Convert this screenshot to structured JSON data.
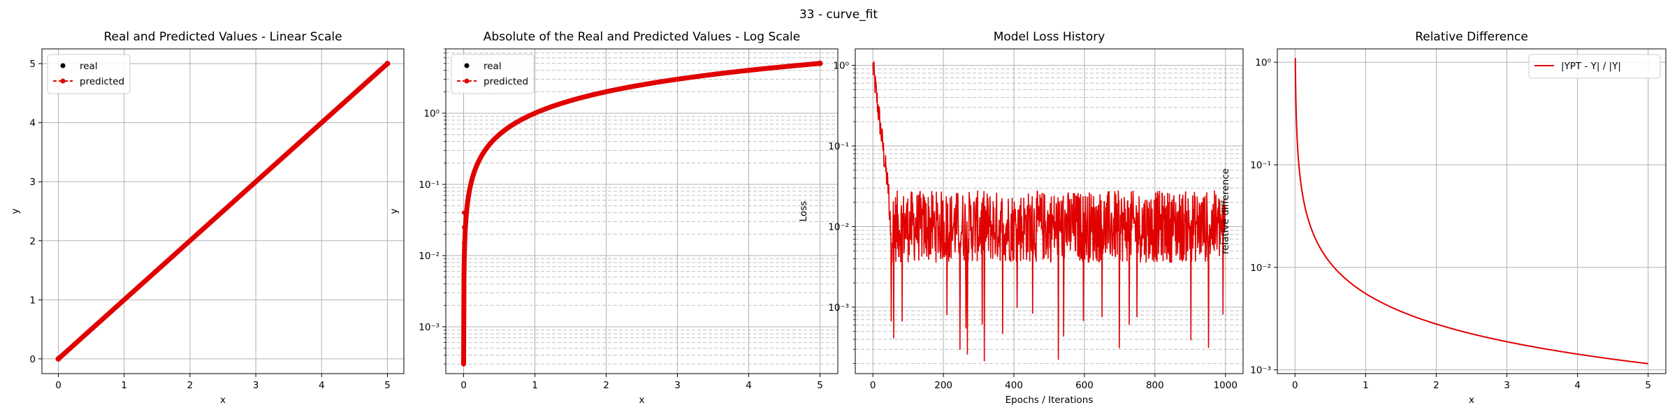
{
  "figure": {
    "suptitle": "33 - curve_fit"
  },
  "colors": {
    "real": "#000000",
    "predicted": "#e00000",
    "grid_major": "#b0b0b0",
    "grid_minor": "#c0c0c0"
  },
  "chart_data": [
    {
      "type": "line",
      "title": "Real and Predicted Values - Linear Scale",
      "xlabel": "x",
      "ylabel": "y",
      "xscale": "linear",
      "yscale": "linear",
      "xlim": [
        -0.25,
        5.25
      ],
      "ylim": [
        -0.25,
        5.25
      ],
      "xticks": [
        0,
        1,
        2,
        3,
        4,
        5
      ],
      "xticklabels": [
        "0",
        "1",
        "2",
        "3",
        "4",
        "5"
      ],
      "yticks": [
        0,
        1,
        2,
        3,
        4,
        5
      ],
      "yticklabels": [
        "0",
        "1",
        "2",
        "3",
        "4",
        "5"
      ],
      "grid": "major",
      "legend": {
        "placement": "upper-left",
        "entries": [
          "real",
          "predicted"
        ]
      },
      "series": [
        {
          "name": "real",
          "style": "dots",
          "color": "#000000",
          "x": [
            0,
            0.5,
            1,
            1.5,
            2,
            2.5,
            3,
            3.5,
            4,
            4.5,
            5
          ],
          "y": [
            0,
            0.5,
            1,
            1.5,
            2,
            2.5,
            3,
            3.5,
            4,
            4.5,
            5
          ]
        },
        {
          "name": "predicted",
          "style": "dashed-dots",
          "color": "#e00000",
          "x": [
            0,
            0.5,
            1,
            1.5,
            2,
            2.5,
            3,
            3.5,
            4,
            4.5,
            5
          ],
          "y": [
            0,
            0.5,
            1,
            1.5,
            2,
            2.5,
            3,
            3.5,
            4,
            4.5,
            5
          ]
        }
      ]
    },
    {
      "type": "line",
      "title": "Absolute of the Real and Predicted Values - Log Scale",
      "xlabel": "x",
      "ylabel": "y",
      "xscale": "linear",
      "yscale": "log",
      "xlim": [
        -0.25,
        5.25
      ],
      "ylim": [
        0.00022,
        8
      ],
      "xticks": [
        0,
        1,
        2,
        3,
        4,
        5
      ],
      "xticklabels": [
        "0",
        "1",
        "2",
        "3",
        "4",
        "5"
      ],
      "yticks": [
        0.001,
        0.01,
        0.1,
        1
      ],
      "yticklabels": [
        "10⁻³",
        "10⁻²",
        "10⁻¹",
        "10⁰"
      ],
      "grid": "major-and-minor",
      "legend": {
        "placement": "upper-left",
        "entries": [
          "real",
          "predicted"
        ]
      },
      "series": [
        {
          "name": "real",
          "style": "dots",
          "color": "#000000",
          "x": [
            0.005,
            0.01,
            0.015,
            0.02,
            0.03,
            0.05,
            0.1,
            0.2,
            0.5,
            1,
            2,
            3,
            4,
            5
          ],
          "y": [
            0.005,
            0.01,
            0.015,
            0.02,
            0.03,
            0.05,
            0.1,
            0.2,
            0.5,
            1,
            2,
            3,
            4,
            5
          ]
        },
        {
          "name": "predicted",
          "style": "dashed-dots",
          "color": "#e00000",
          "x": [
            0,
            0.01,
            0.015,
            0.02,
            0.03,
            0.05,
            0.1,
            0.2,
            0.5,
            1,
            2,
            3,
            4,
            5
          ],
          "y": [
            0.0003,
            0.01,
            0.015,
            0.02,
            0.03,
            0.05,
            0.1,
            0.2,
            0.5,
            1,
            2,
            3,
            4,
            5
          ]
        }
      ]
    },
    {
      "type": "line",
      "title": "Model Loss History",
      "xlabel": "Epochs / Iterations",
      "ylabel": "Loss",
      "xscale": "linear",
      "yscale": "log",
      "xlim": [
        -50,
        1050
      ],
      "ylim": [
        0.00015,
        1.6
      ],
      "xticks": [
        0,
        200,
        400,
        600,
        800,
        1000
      ],
      "xticklabels": [
        "0",
        "200",
        "400",
        "600",
        "800",
        "1000"
      ],
      "yticks": [
        0.001,
        0.01,
        0.1,
        1
      ],
      "yticklabels": [
        "10⁻³",
        "10⁻²",
        "10⁻¹",
        "10⁰"
      ],
      "grid": "major-and-minor",
      "legend": null,
      "series": [
        {
          "style": "line",
          "color": "#e00000",
          "x": [
            0,
            1000
          ],
          "y": [
            0.95,
            0.01
          ],
          "note_profile": "decays from ~1 to ~0.03 by epoch 50, then noisy band 0.004-0.025 with spikes down to 2e-4"
        }
      ]
    },
    {
      "type": "line",
      "title": "Relative Difference",
      "xlabel": "x",
      "ylabel": "relative difference",
      "xscale": "linear",
      "yscale": "log",
      "xlim": [
        -0.25,
        5.25
      ],
      "ylim": [
        0.00092,
        1.35
      ],
      "xticks": [
        0,
        1,
        2,
        3,
        4,
        5
      ],
      "xticklabels": [
        "0",
        "1",
        "2",
        "3",
        "4",
        "5"
      ],
      "yticks": [
        0.001,
        0.01,
        0.1,
        1
      ],
      "yticklabels": [
        "10⁻³",
        "10⁻²",
        "10⁻¹",
        "10⁰"
      ],
      "grid": "major",
      "legend": {
        "placement": "upper-right",
        "entries": [
          "|YPT - Y| / |Y|"
        ]
      },
      "series": [
        {
          "name": "|YPT - Y| / |Y|",
          "style": "line",
          "color": "#e00000",
          "x": [
            0.005,
            0.01,
            0.02,
            0.05,
            0.1,
            0.2,
            0.5,
            1,
            2,
            3,
            4,
            5
          ],
          "y": [
            1.1,
            0.6,
            0.31,
            0.12,
            0.06,
            0.031,
            0.0125,
            0.0063,
            0.0032,
            0.0021,
            0.0016,
            0.00115
          ]
        }
      ]
    }
  ]
}
